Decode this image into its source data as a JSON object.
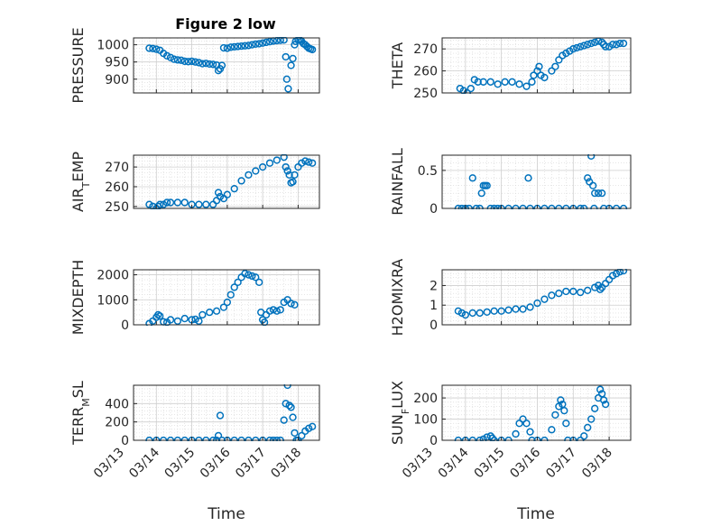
{
  "figure": {
    "title": "Figure 2 low",
    "xlabel": "Time",
    "xticks": [
      "03/13",
      "03/14",
      "03/15",
      "03/16",
      "03/17",
      "03/18"
    ],
    "marker_color": "#0072bd"
  },
  "chart_data": [
    {
      "type": "scatter",
      "ylabel": "PRESSURE",
      "ylim": [
        860,
        1020
      ],
      "yticks": [
        900,
        950,
        1000
      ],
      "xlim": [
        "03/13",
        "03/18"
      ],
      "grid": true,
      "points": [
        [
          0.8,
          990
        ],
        [
          0.9,
          989
        ],
        [
          1.0,
          987
        ],
        [
          1.1,
          984
        ],
        [
          1.2,
          975
        ],
        [
          1.3,
          968
        ],
        [
          1.4,
          963
        ],
        [
          1.5,
          958
        ],
        [
          1.6,
          956
        ],
        [
          1.7,
          955
        ],
        [
          1.8,
          952
        ],
        [
          1.9,
          951
        ],
        [
          2.0,
          952
        ],
        [
          2.1,
          950
        ],
        [
          2.2,
          948
        ],
        [
          2.3,
          945
        ],
        [
          2.4,
          946
        ],
        [
          2.5,
          944
        ],
        [
          2.6,
          943
        ],
        [
          2.7,
          941
        ],
        [
          2.75,
          925
        ],
        [
          2.8,
          930
        ],
        [
          2.85,
          940
        ],
        [
          2.9,
          991
        ],
        [
          3.0,
          990
        ],
        [
          3.1,
          993
        ],
        [
          3.2,
          994
        ],
        [
          3.3,
          995
        ],
        [
          3.4,
          996
        ],
        [
          3.5,
          997
        ],
        [
          3.6,
          998
        ],
        [
          3.7,
          1000
        ],
        [
          3.8,
          1002
        ],
        [
          3.9,
          1003
        ],
        [
          4.0,
          1005
        ],
        [
          4.1,
          1007
        ],
        [
          4.2,
          1009
        ],
        [
          4.3,
          1011
        ],
        [
          4.4,
          1012
        ],
        [
          4.5,
          1013
        ],
        [
          4.6,
          1014
        ],
        [
          4.65,
          965
        ],
        [
          4.68,
          900
        ],
        [
          4.72,
          872
        ],
        [
          4.8,
          940
        ],
        [
          4.85,
          960
        ],
        [
          4.9,
          1000
        ],
        [
          4.93,
          1010
        ],
        [
          5.0,
          1015
        ],
        [
          5.05,
          1014
        ],
        [
          5.1,
          1010
        ],
        [
          5.15,
          1003
        ],
        [
          5.2,
          1000
        ],
        [
          5.25,
          995
        ],
        [
          5.3,
          990
        ],
        [
          5.35,
          988
        ],
        [
          5.4,
          986
        ]
      ]
    },
    {
      "type": "scatter",
      "ylabel": "THETA",
      "ylim": [
        250,
        275
      ],
      "yticks": [
        250,
        260,
        270
      ],
      "xlim": [
        "03/13",
        "03/18"
      ],
      "grid": true,
      "points": [
        [
          0.85,
          252
        ],
        [
          0.95,
          251
        ],
        [
          1.05,
          250
        ],
        [
          1.15,
          252
        ],
        [
          1.25,
          256
        ],
        [
          1.35,
          255
        ],
        [
          1.5,
          255
        ],
        [
          1.7,
          255
        ],
        [
          1.9,
          254
        ],
        [
          2.1,
          255
        ],
        [
          2.3,
          255
        ],
        [
          2.5,
          254
        ],
        [
          2.7,
          253
        ],
        [
          2.85,
          255
        ],
        [
          2.9,
          258
        ],
        [
          3.0,
          260
        ],
        [
          3.05,
          262
        ],
        [
          3.1,
          258
        ],
        [
          3.2,
          257
        ],
        [
          3.4,
          260
        ],
        [
          3.5,
          262
        ],
        [
          3.6,
          265
        ],
        [
          3.7,
          267
        ],
        [
          3.8,
          268
        ],
        [
          3.9,
          269
        ],
        [
          4.0,
          270
        ],
        [
          4.1,
          270.5
        ],
        [
          4.2,
          271
        ],
        [
          4.3,
          271.5
        ],
        [
          4.4,
          272
        ],
        [
          4.5,
          272.5
        ],
        [
          4.6,
          273
        ],
        [
          4.7,
          273.5
        ],
        [
          4.8,
          273
        ],
        [
          4.85,
          272
        ],
        [
          4.9,
          271
        ],
        [
          5.0,
          271
        ],
        [
          5.1,
          272
        ],
        [
          5.2,
          272
        ],
        [
          5.3,
          272.5
        ],
        [
          5.4,
          272.5
        ]
      ]
    },
    {
      "type": "scatter",
      "ylabel": "AIR_TEMP",
      "ylim": [
        249,
        276
      ],
      "yticks": [
        250,
        260,
        270
      ],
      "xlim": [
        "03/13",
        "03/18"
      ],
      "grid": true,
      "points": [
        [
          0.8,
          251
        ],
        [
          0.9,
          250
        ],
        [
          1.0,
          249
        ],
        [
          1.05,
          250
        ],
        [
          1.1,
          251
        ],
        [
          1.2,
          251
        ],
        [
          1.3,
          252
        ],
        [
          1.4,
          252
        ],
        [
          1.6,
          252
        ],
        [
          1.8,
          252
        ],
        [
          2.0,
          251
        ],
        [
          2.2,
          251
        ],
        [
          2.4,
          251
        ],
        [
          2.6,
          251
        ],
        [
          2.7,
          253
        ],
        [
          2.75,
          257
        ],
        [
          2.8,
          255
        ],
        [
          2.9,
          254
        ],
        [
          3.0,
          256
        ],
        [
          3.2,
          259
        ],
        [
          3.4,
          263
        ],
        [
          3.6,
          266
        ],
        [
          3.8,
          268
        ],
        [
          4.0,
          270
        ],
        [
          4.2,
          272
        ],
        [
          4.4,
          273.5
        ],
        [
          4.6,
          275
        ],
        [
          4.65,
          270
        ],
        [
          4.7,
          268
        ],
        [
          4.75,
          266
        ],
        [
          4.8,
          262
        ],
        [
          4.85,
          262.5
        ],
        [
          4.9,
          266
        ],
        [
          5.0,
          270
        ],
        [
          5.1,
          272
        ],
        [
          5.2,
          273
        ],
        [
          5.3,
          272.5
        ],
        [
          5.4,
          272
        ]
      ]
    },
    {
      "type": "scatter",
      "ylabel": "RAINFALL",
      "ylim": [
        0,
        0.7
      ],
      "yticks": [
        0,
        0.5
      ],
      "xlim": [
        "03/13",
        "03/18"
      ],
      "grid": true,
      "points": [
        [
          0.8,
          0
        ],
        [
          0.9,
          0
        ],
        [
          1.0,
          0
        ],
        [
          1.1,
          0
        ],
        [
          1.2,
          0.4
        ],
        [
          1.3,
          0
        ],
        [
          1.4,
          0
        ],
        [
          1.45,
          0.2
        ],
        [
          1.5,
          0.3
        ],
        [
          1.55,
          0.3
        ],
        [
          1.6,
          0.3
        ],
        [
          1.7,
          0
        ],
        [
          1.8,
          0
        ],
        [
          1.9,
          0
        ],
        [
          2.0,
          0
        ],
        [
          2.2,
          0
        ],
        [
          2.4,
          0
        ],
        [
          2.6,
          0
        ],
        [
          2.75,
          0.4
        ],
        [
          2.8,
          0
        ],
        [
          3.0,
          0
        ],
        [
          3.2,
          0
        ],
        [
          3.4,
          0
        ],
        [
          3.6,
          0
        ],
        [
          3.8,
          0
        ],
        [
          4.0,
          0
        ],
        [
          4.2,
          0
        ],
        [
          4.3,
          0
        ],
        [
          4.4,
          0.4
        ],
        [
          4.45,
          0.35
        ],
        [
          4.5,
          0.69
        ],
        [
          4.55,
          0.3
        ],
        [
          4.58,
          0
        ],
        [
          4.6,
          0.2
        ],
        [
          4.7,
          0.2
        ],
        [
          4.8,
          0.2
        ],
        [
          4.85,
          0
        ],
        [
          5.0,
          0
        ],
        [
          5.2,
          0
        ],
        [
          5.4,
          0
        ]
      ]
    },
    {
      "type": "scatter",
      "ylabel": "MIXDEPTH",
      "ylim": [
        0,
        2200
      ],
      "yticks": [
        0,
        1000,
        2000
      ],
      "xlim": [
        "03/13",
        "03/18"
      ],
      "grid": true,
      "points": [
        [
          0.8,
          50
        ],
        [
          0.9,
          150
        ],
        [
          1.0,
          300
        ],
        [
          1.05,
          400
        ],
        [
          1.1,
          350
        ],
        [
          1.2,
          120
        ],
        [
          1.3,
          100
        ],
        [
          1.4,
          200
        ],
        [
          1.6,
          150
        ],
        [
          1.8,
          250
        ],
        [
          2.0,
          200
        ],
        [
          2.1,
          220
        ],
        [
          2.2,
          150
        ],
        [
          2.3,
          400
        ],
        [
          2.5,
          500
        ],
        [
          2.7,
          550
        ],
        [
          2.9,
          700
        ],
        [
          3.0,
          900
        ],
        [
          3.1,
          1200
        ],
        [
          3.2,
          1500
        ],
        [
          3.3,
          1700
        ],
        [
          3.4,
          1900
        ],
        [
          3.5,
          2050
        ],
        [
          3.6,
          2000
        ],
        [
          3.7,
          1950
        ],
        [
          3.8,
          1900
        ],
        [
          3.9,
          1700
        ],
        [
          3.95,
          500
        ],
        [
          4.0,
          200
        ],
        [
          4.05,
          100
        ],
        [
          4.1,
          400
        ],
        [
          4.2,
          550
        ],
        [
          4.3,
          600
        ],
        [
          4.4,
          550
        ],
        [
          4.5,
          600
        ],
        [
          4.6,
          900
        ],
        [
          4.7,
          1000
        ],
        [
          4.8,
          850
        ],
        [
          4.9,
          800
        ]
      ]
    },
    {
      "type": "scatter",
      "ylabel": "H2OMIXRA",
      "ylim": [
        0,
        2.8
      ],
      "yticks": [
        0,
        1,
        2
      ],
      "xlim": [
        "03/13",
        "03/18"
      ],
      "grid": true,
      "points": [
        [
          0.8,
          0.7
        ],
        [
          0.9,
          0.6
        ],
        [
          1.0,
          0.5
        ],
        [
          1.2,
          0.6
        ],
        [
          1.4,
          0.6
        ],
        [
          1.6,
          0.65
        ],
        [
          1.8,
          0.7
        ],
        [
          2.0,
          0.7
        ],
        [
          2.2,
          0.75
        ],
        [
          2.4,
          0.8
        ],
        [
          2.6,
          0.8
        ],
        [
          2.8,
          0.9
        ],
        [
          3.0,
          1.1
        ],
        [
          3.2,
          1.3
        ],
        [
          3.4,
          1.5
        ],
        [
          3.6,
          1.6
        ],
        [
          3.8,
          1.7
        ],
        [
          4.0,
          1.7
        ],
        [
          4.2,
          1.65
        ],
        [
          4.4,
          1.75
        ],
        [
          4.6,
          1.9
        ],
        [
          4.7,
          2.0
        ],
        [
          4.75,
          1.8
        ],
        [
          4.8,
          1.9
        ],
        [
          4.9,
          2.1
        ],
        [
          5.0,
          2.3
        ],
        [
          5.1,
          2.5
        ],
        [
          5.2,
          2.6
        ],
        [
          5.3,
          2.7
        ],
        [
          5.4,
          2.75
        ]
      ]
    },
    {
      "type": "scatter",
      "ylabel": "TERR_MSL",
      "ylim": [
        0,
        600
      ],
      "yticks": [
        0,
        200,
        400
      ],
      "xlim": [
        "03/13",
        "03/18"
      ],
      "grid": true,
      "points": [
        [
          0.8,
          0
        ],
        [
          1.0,
          0
        ],
        [
          1.2,
          0
        ],
        [
          1.4,
          0
        ],
        [
          1.6,
          0
        ],
        [
          1.8,
          0
        ],
        [
          2.0,
          0
        ],
        [
          2.2,
          0
        ],
        [
          2.4,
          0
        ],
        [
          2.6,
          0
        ],
        [
          2.7,
          0
        ],
        [
          2.75,
          50
        ],
        [
          2.8,
          270
        ],
        [
          2.85,
          0
        ],
        [
          3.0,
          0
        ],
        [
          3.2,
          0
        ],
        [
          3.4,
          0
        ],
        [
          3.6,
          0
        ],
        [
          3.8,
          0
        ],
        [
          4.0,
          0
        ],
        [
          4.2,
          0
        ],
        [
          4.3,
          0
        ],
        [
          4.4,
          0
        ],
        [
          4.5,
          0
        ],
        [
          4.6,
          220
        ],
        [
          4.65,
          400
        ],
        [
          4.7,
          600
        ],
        [
          4.75,
          380
        ],
        [
          4.8,
          360
        ],
        [
          4.85,
          250
        ],
        [
          4.9,
          80
        ],
        [
          4.95,
          0
        ],
        [
          5.0,
          0
        ],
        [
          5.1,
          50
        ],
        [
          5.2,
          100
        ],
        [
          5.3,
          130
        ],
        [
          5.4,
          150
        ]
      ]
    },
    {
      "type": "scatter",
      "ylabel": "SUN_FLUX",
      "ylim": [
        0,
        260
      ],
      "yticks": [
        0,
        100,
        200
      ],
      "xlim": [
        "03/13",
        "03/18"
      ],
      "grid": true,
      "points": [
        [
          0.8,
          0
        ],
        [
          1.0,
          0
        ],
        [
          1.2,
          0
        ],
        [
          1.4,
          0
        ],
        [
          1.5,
          5
        ],
        [
          1.6,
          15
        ],
        [
          1.7,
          20
        ],
        [
          1.75,
          10
        ],
        [
          1.8,
          0
        ],
        [
          2.0,
          0
        ],
        [
          2.2,
          0
        ],
        [
          2.4,
          30
        ],
        [
          2.5,
          80
        ],
        [
          2.6,
          100
        ],
        [
          2.7,
          80
        ],
        [
          2.8,
          40
        ],
        [
          2.85,
          0
        ],
        [
          3.0,
          0
        ],
        [
          3.2,
          0
        ],
        [
          3.4,
          50
        ],
        [
          3.5,
          120
        ],
        [
          3.6,
          160
        ],
        [
          3.65,
          190
        ],
        [
          3.7,
          170
        ],
        [
          3.75,
          140
        ],
        [
          3.8,
          80
        ],
        [
          3.85,
          0
        ],
        [
          4.0,
          0
        ],
        [
          4.2,
          0
        ],
        [
          4.3,
          20
        ],
        [
          4.4,
          60
        ],
        [
          4.5,
          100
        ],
        [
          4.6,
          150
        ],
        [
          4.7,
          200
        ],
        [
          4.75,
          240
        ],
        [
          4.8,
          220
        ],
        [
          4.85,
          190
        ],
        [
          4.9,
          170
        ]
      ]
    }
  ]
}
